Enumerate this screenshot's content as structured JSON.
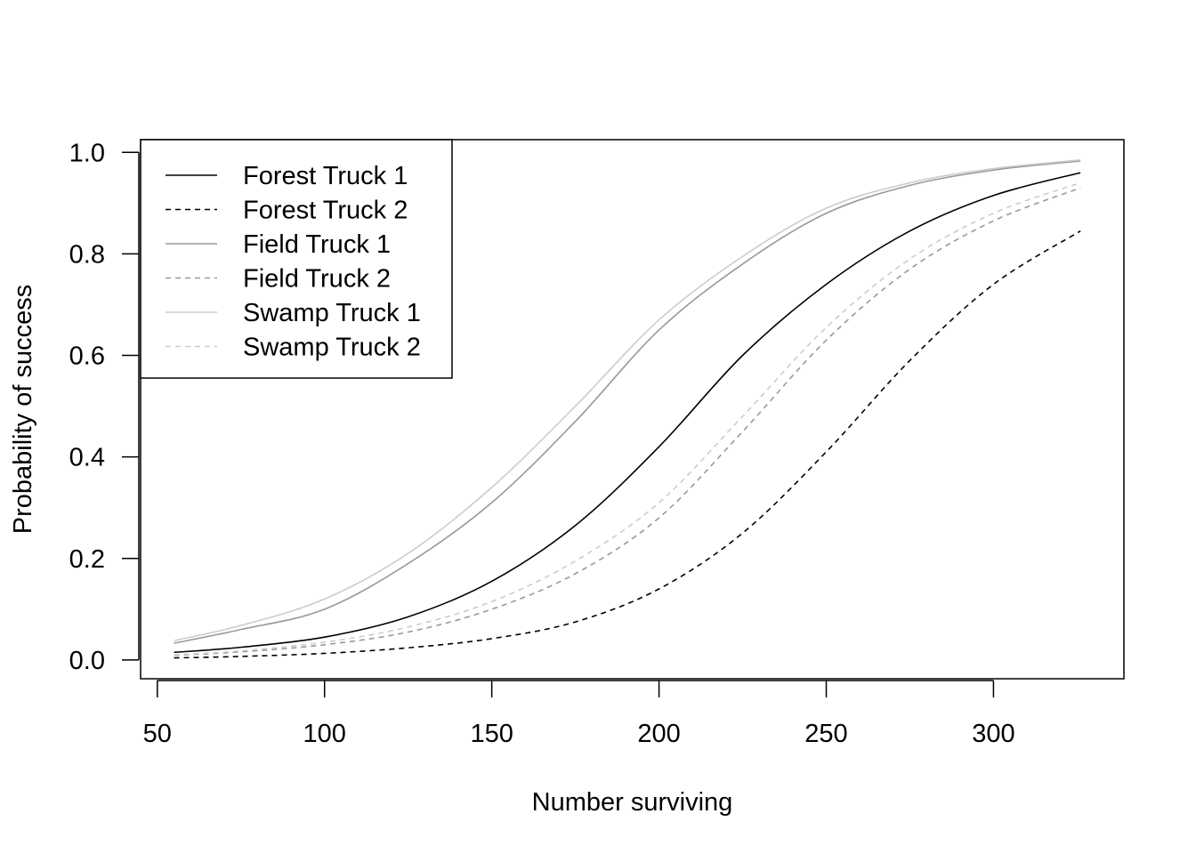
{
  "chart_data": {
    "type": "line",
    "title": "",
    "xlabel": "Number surviving",
    "ylabel": "Probability of success",
    "xlim": [
      45,
      339
    ],
    "ylim": [
      -0.037,
      1.025
    ],
    "x_ticks": [
      50,
      100,
      150,
      200,
      250,
      300
    ],
    "y_ticks": [
      0.0,
      0.2,
      0.4,
      0.6,
      0.8,
      1.0
    ],
    "x_tick_labels": [
      "50",
      "100",
      "150",
      "200",
      "250",
      "300"
    ],
    "y_tick_labels": [
      "0.0",
      "0.2",
      "0.4",
      "0.6",
      "0.8",
      "1.0"
    ],
    "grid": false,
    "legend_position": "top-left",
    "x": [
      55,
      75,
      100,
      125,
      150,
      175,
      200,
      225,
      250,
      275,
      300,
      326
    ],
    "series": [
      {
        "name": "Forest Truck 1",
        "color": "#000000",
        "dash": "solid",
        "values": [
          0.015,
          0.025,
          0.045,
          0.085,
          0.155,
          0.265,
          0.42,
          0.6,
          0.74,
          0.845,
          0.915,
          0.96
        ]
      },
      {
        "name": "Forest Truck 2",
        "color": "#000000",
        "dash": "dashed",
        "values": [
          0.004,
          0.007,
          0.013,
          0.024,
          0.042,
          0.075,
          0.14,
          0.25,
          0.41,
          0.59,
          0.74,
          0.845
        ]
      },
      {
        "name": "Field Truck 1",
        "color": "#999999",
        "dash": "solid",
        "values": [
          0.033,
          0.06,
          0.1,
          0.19,
          0.31,
          0.47,
          0.65,
          0.78,
          0.88,
          0.935,
          0.965,
          0.983
        ]
      },
      {
        "name": "Field Truck 2",
        "color": "#999999",
        "dash": "dashed",
        "values": [
          0.009,
          0.016,
          0.03,
          0.055,
          0.1,
          0.17,
          0.28,
          0.45,
          0.63,
          0.77,
          0.865,
          0.93
        ]
      },
      {
        "name": "Swamp Truck 1",
        "color": "#cccccc",
        "dash": "solid",
        "values": [
          0.038,
          0.068,
          0.12,
          0.21,
          0.34,
          0.5,
          0.67,
          0.795,
          0.89,
          0.94,
          0.968,
          0.985
        ]
      },
      {
        "name": "Swamp Truck 2",
        "color": "#cccccc",
        "dash": "dashed",
        "values": [
          0.01,
          0.018,
          0.035,
          0.065,
          0.115,
          0.195,
          0.31,
          0.48,
          0.655,
          0.79,
          0.88,
          0.94
        ]
      }
    ]
  }
}
